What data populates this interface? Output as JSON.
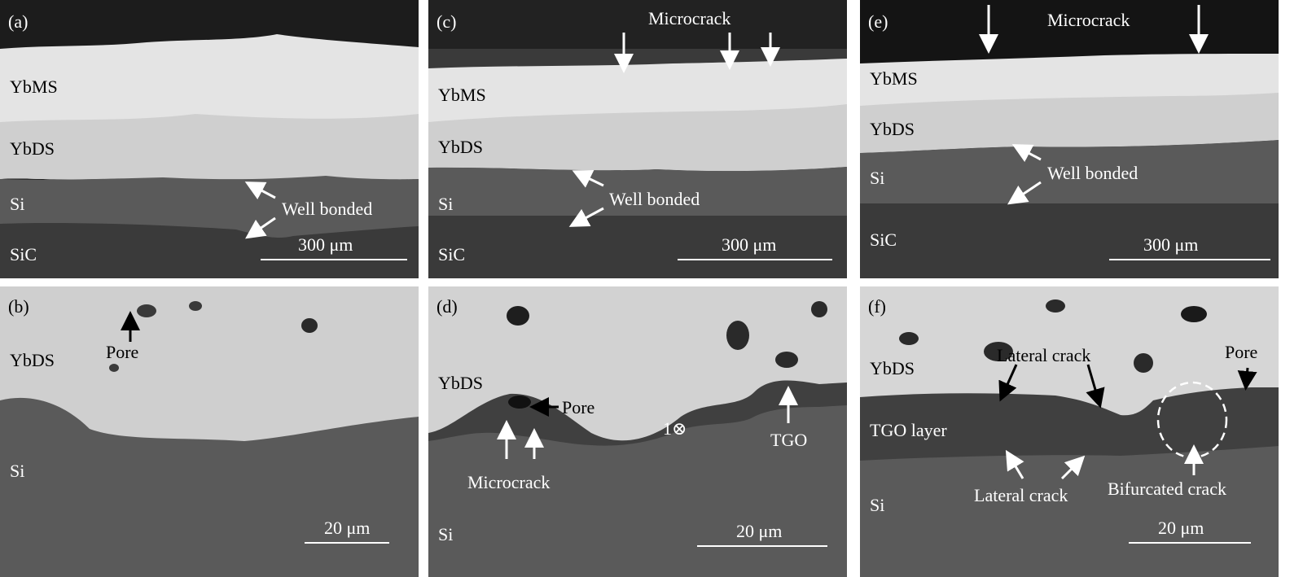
{
  "colors": {
    "epoxy": "#1c1c1c",
    "ybms": "#e6e6e6",
    "ybds": "#d2d2d2",
    "si": "#5a5a5a",
    "sic": "#3a3a3a",
    "tgo": "#404040",
    "annotation": "#ffffff"
  },
  "panels": {
    "a": {
      "tag": "(a)",
      "layers": [
        "YbMS",
        "YbDS",
        "Si",
        "SiC"
      ],
      "annotation": "Well bonded",
      "scale": "300 μm"
    },
    "b": {
      "tag": "(b)",
      "layers": [
        "YbDS",
        "Si"
      ],
      "annotation": "Pore",
      "scale": "20 μm"
    },
    "c": {
      "tag": "(c)",
      "layers": [
        "YbMS",
        "YbDS",
        "Si",
        "SiC"
      ],
      "annotation_top": "Microcrack",
      "annotation": "Well bonded",
      "scale": "300 μm"
    },
    "d": {
      "tag": "(d)",
      "layers": [
        "YbDS",
        "Si"
      ],
      "pore": "Pore",
      "microcrack": "Microcrack",
      "point": "1⊗",
      "tgo": "TGO",
      "scale": "20 μm"
    },
    "e": {
      "tag": "(e)",
      "layers": [
        "YbMS",
        "YbDS",
        "Si",
        "SiC"
      ],
      "annotation_top": "Microcrack",
      "annotation": "Well bonded",
      "scale": "300 μm"
    },
    "f": {
      "tag": "(f)",
      "layers": [
        "YbDS",
        "TGO layer",
        "Si"
      ],
      "lateral_top": "Lateral crack",
      "pore": "Pore",
      "lateral_bottom": "Lateral crack",
      "bifurcated": "Bifurcated crack",
      "scale": "20 μm"
    }
  }
}
